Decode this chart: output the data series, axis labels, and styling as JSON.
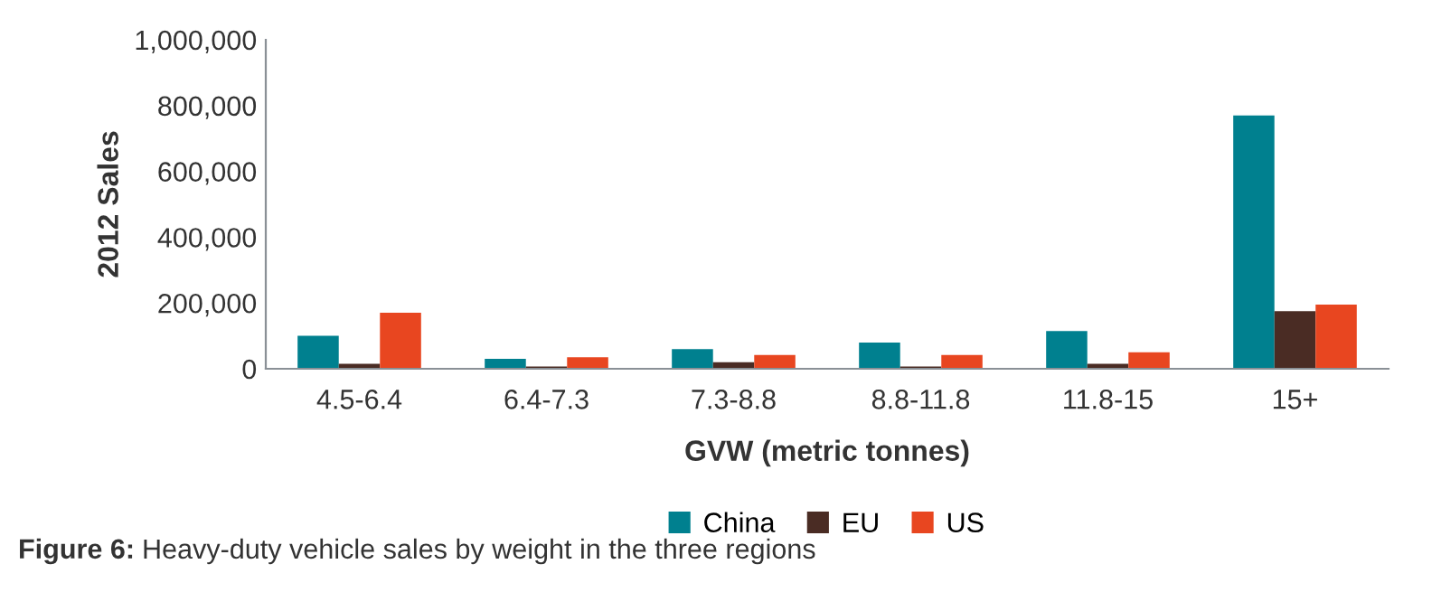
{
  "chart_data": {
    "type": "bar",
    "xlabel": "GVW (metric tonnes)",
    "ylabel": "2012 Sales",
    "categories": [
      "4.5-6.4",
      "6.4-7.3",
      "7.3-8.8",
      "8.8-11.8",
      "11.8-15",
      "15+"
    ],
    "series": [
      {
        "name": "China",
        "color": "#00808f",
        "values": [
          100000,
          30000,
          60000,
          80000,
          115000,
          770000
        ]
      },
      {
        "name": "EU",
        "color": "#4a2c24",
        "values": [
          15000,
          7000,
          20000,
          7000,
          15000,
          175000
        ]
      },
      {
        "name": "US",
        "color": "#e84620",
        "values": [
          170000,
          35000,
          42000,
          42000,
          50000,
          195000
        ]
      }
    ],
    "ylim": [
      0,
      1000000
    ],
    "yticks": [
      {
        "value": 0,
        "label": "0"
      },
      {
        "value": 200000,
        "label": "200,000"
      },
      {
        "value": 400000,
        "label": "400,000"
      },
      {
        "value": 600000,
        "label": "600,000"
      },
      {
        "value": 800000,
        "label": "800,000"
      },
      {
        "value": 1000000,
        "label": "1,000,000"
      }
    ],
    "grid": false,
    "legend": "bottom",
    "annotations": [
      "Figure 6:",
      "Heavy-duty vehicle sales by weight in the three regions"
    ]
  }
}
